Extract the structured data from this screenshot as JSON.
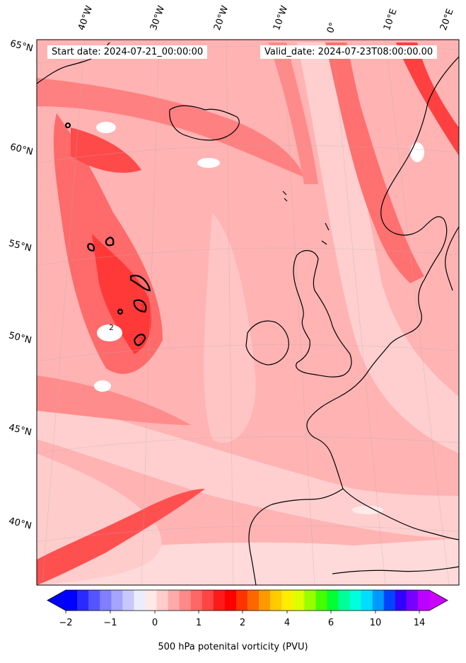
{
  "map": {
    "title_left": "Start date: 2024-07-21_00:00:00",
    "title_right": "Valid_date: 2024-07-23T08:00:00.00",
    "lon_labels": [
      "40°W",
      "30°W",
      "20°W",
      "10°W",
      "0°",
      "10°E",
      "20°E"
    ],
    "lat_labels": [
      "65°N",
      "60°N",
      "55°N",
      "50°N",
      "45°N",
      "40°N"
    ],
    "field": "500 hPa potential vorticity",
    "contour_level_label": "2",
    "colors": {
      "coast": "#000000",
      "background_field": "#ffcfcf"
    }
  },
  "colorbar": {
    "label": "500 hPa potenital vorticity (PVU)",
    "ticks": [
      "−2",
      "−1",
      "0",
      "1",
      "2",
      "4",
      "6",
      "10",
      "14"
    ],
    "colors": [
      "#0000ff",
      "#2a2aff",
      "#5555ff",
      "#7f7fff",
      "#a4a4ff",
      "#c8c8ff",
      "#ececff",
      "#ffe8e8",
      "#ffcccc",
      "#ffaaaa",
      "#ff8888",
      "#ff6666",
      "#ff4444",
      "#ff1a1a",
      "#ff0000",
      "#ff3300",
      "#ff6600",
      "#ff9900",
      "#ffcc00",
      "#ffee00",
      "#ddff00",
      "#99ff00",
      "#44ff00",
      "#00ff33",
      "#00ff99",
      "#00ffdd",
      "#00ddff",
      "#0099ff",
      "#0044ff",
      "#3300ff",
      "#7700ff",
      "#bb00ff"
    ],
    "under_color": "#0000ff",
    "over_color": "#cc00ff"
  }
}
